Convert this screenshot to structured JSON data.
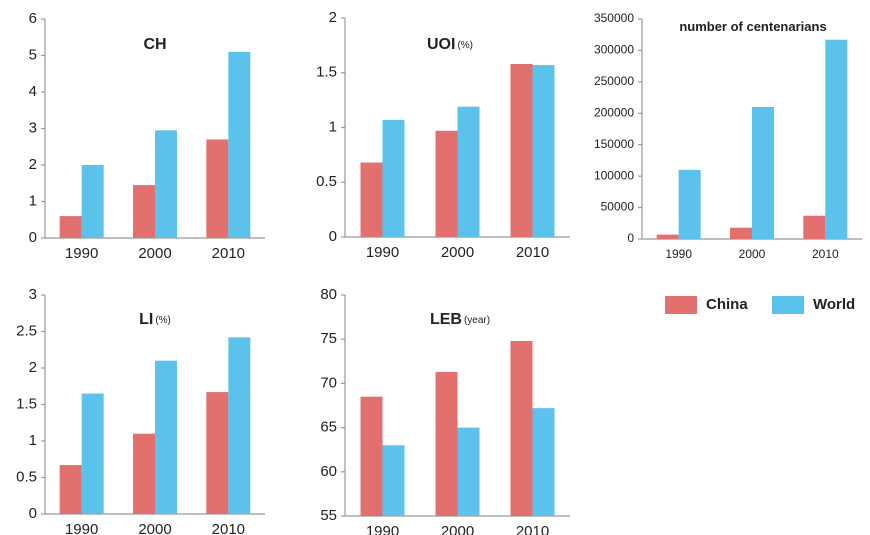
{
  "chart_data": [
    {
      "type": "bar",
      "title": "CH",
      "categories": [
        "1990",
        "2000",
        "2010"
      ],
      "series": [
        {
          "name": "China",
          "color": "#e2706e",
          "values": [
            0.6,
            1.45,
            2.7
          ]
        },
        {
          "name": "World",
          "color": "#5bc2ec",
          "values": [
            2.0,
            2.95,
            5.1
          ]
        }
      ],
      "ylim": [
        0,
        6
      ],
      "yticks": [
        0,
        1,
        2,
        3,
        4,
        5,
        6
      ]
    },
    {
      "type": "bar",
      "title": "UOI",
      "unit": "(%)",
      "categories": [
        "1990",
        "2000",
        "2010"
      ],
      "series": [
        {
          "name": "China",
          "color": "#e2706e",
          "values": [
            0.68,
            0.97,
            1.58
          ]
        },
        {
          "name": "World",
          "color": "#5bc2ec",
          "values": [
            1.07,
            1.19,
            1.57
          ]
        }
      ],
      "ylim": [
        0,
        2
      ],
      "yticks": [
        0,
        0.5,
        1,
        1.5,
        2
      ]
    },
    {
      "type": "bar",
      "title": "number of centenarians",
      "categories": [
        "1990",
        "2000",
        "2010"
      ],
      "series": [
        {
          "name": "China",
          "color": "#e2706e",
          "values": [
            7000,
            18000,
            37000
          ]
        },
        {
          "name": "World",
          "color": "#5bc2ec",
          "values": [
            110000,
            210000,
            317000
          ]
        }
      ],
      "ylim": [
        0,
        350000
      ],
      "yticks": [
        0,
        50000,
        100000,
        150000,
        200000,
        250000,
        300000,
        350000
      ]
    },
    {
      "type": "bar",
      "title": "LI",
      "unit": "(%)",
      "categories": [
        "1990",
        "2000",
        "2010"
      ],
      "series": [
        {
          "name": "China",
          "color": "#e2706e",
          "values": [
            0.67,
            1.1,
            1.67
          ]
        },
        {
          "name": "World",
          "color": "#5bc2ec",
          "values": [
            1.65,
            2.1,
            2.42
          ]
        }
      ],
      "ylim": [
        0,
        3
      ],
      "yticks": [
        0,
        0.5,
        1,
        1.5,
        2,
        2.5,
        3
      ]
    },
    {
      "type": "bar",
      "title": "LEB",
      "unit": "(year)",
      "categories": [
        "1990",
        "2000",
        "2010"
      ],
      "series": [
        {
          "name": "China",
          "color": "#e2706e",
          "values": [
            68.5,
            71.3,
            74.8
          ]
        },
        {
          "name": "World",
          "color": "#5bc2ec",
          "values": [
            63,
            65,
            67.2
          ]
        }
      ],
      "ylim": [
        55,
        80
      ],
      "yticks": [
        55,
        60,
        65,
        70,
        75,
        80
      ]
    }
  ]
}
